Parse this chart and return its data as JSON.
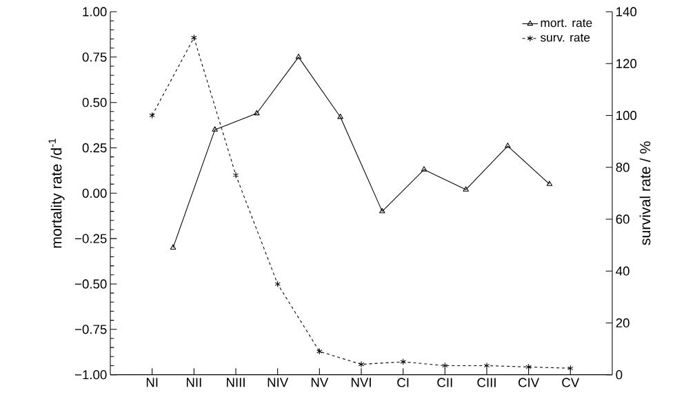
{
  "chart_data": {
    "type": "line",
    "ylabel": "mortality rate /d$^{-1}$",
    "y2label": "survival rate / %",
    "categories": [
      "NI",
      null,
      "NII",
      null,
      "NIII",
      null,
      "NIV",
      null,
      "NV",
      null,
      "NVI",
      null,
      "CI",
      null,
      "CII",
      null,
      "CIII",
      null,
      "CIV",
      null,
      "CV"
    ],
    "ylim": [
      -1,
      1
    ],
    "yticks": [
      {
        "value": -1,
        "label": "−1.00"
      },
      {
        "value": -0.75,
        "label": "−0.75"
      },
      {
        "value": -0.5,
        "label": "−0.50"
      },
      {
        "value": -0.25,
        "label": "−0.25"
      },
      {
        "value": 0,
        "label": "0.00"
      },
      {
        "value": 0.25,
        "label": "0.25"
      },
      {
        "value": 0.5,
        "label": "0.50"
      },
      {
        "value": 0.75,
        "label": "0.75"
      },
      {
        "value": 1,
        "label": "1.00"
      }
    ],
    "y2lim": [
      0,
      140
    ],
    "y2ticks": [
      0,
      20,
      40,
      60,
      80,
      100,
      120,
      140
    ],
    "legend": "top right",
    "series": [
      {
        "name": "mort. rate",
        "color": "#000000",
        "marker": "triangle",
        "line_style": "solid",
        "values": [
          null,
          -0.3,
          null,
          0.35,
          null,
          0.44,
          null,
          0.75,
          null,
          0.42,
          null,
          -0.1,
          null,
          0.13,
          null,
          0.02,
          null,
          0.26,
          null,
          0.05,
          null
        ]
      },
      {
        "name": "surv. rate",
        "color": "#000000",
        "marker": "cross",
        "line_style": "dashed",
        "axis": "y2",
        "values": [
          100,
          null,
          130,
          null,
          77,
          null,
          35,
          null,
          9,
          null,
          4,
          null,
          5,
          null,
          3.5,
          null,
          3.5,
          null,
          3,
          null,
          2.5
        ]
      }
    ]
  }
}
